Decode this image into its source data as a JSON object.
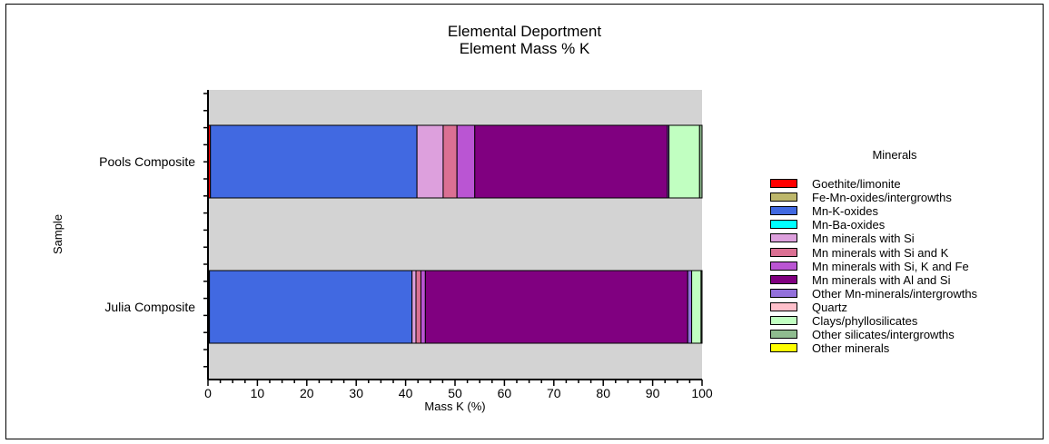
{
  "chart_data": {
    "type": "bar",
    "orientation": "horizontal",
    "stacked": true,
    "title": "Elemental Deportment",
    "subtitle": "Element Mass % K",
    "xlabel": "Mass K (%)",
    "ylabel": "Sample",
    "xlim": [
      0,
      100
    ],
    "xticks": [
      "0",
      "10",
      "20",
      "30",
      "40",
      "50",
      "60",
      "70",
      "80",
      "90",
      "100"
    ],
    "categories": [
      "Pools Composite",
      "Julia Composite"
    ],
    "legend_title": "Minerals",
    "legend_position": "right",
    "series": [
      {
        "name": "Goethite/limonite",
        "color": "#ff0000",
        "values": [
          0.5,
          0.2
        ]
      },
      {
        "name": "Fe-Mn-oxides/intergrowths",
        "color": "#bdb76b",
        "values": [
          0.0,
          0.1
        ]
      },
      {
        "name": "Mn-K-oxides",
        "color": "#4169e1",
        "values": [
          41.8,
          41.0
        ]
      },
      {
        "name": "Mn-Ba-oxides",
        "color": "#00ffff",
        "values": [
          0.0,
          0.0
        ]
      },
      {
        "name": "Mn minerals with Si",
        "color": "#dda0dd",
        "values": [
          5.3,
          0.8
        ]
      },
      {
        "name": "Mn minerals with Si and K",
        "color": "#db7093",
        "values": [
          2.8,
          1.0
        ]
      },
      {
        "name": "Mn minerals with Si, K and Fe",
        "color": "#ba55d3",
        "values": [
          3.6,
          0.9
        ]
      },
      {
        "name": "Mn minerals with Al and Si",
        "color": "#800080",
        "values": [
          39.0,
          53.1
        ]
      },
      {
        "name": "Other Mn-minerals/intergrowths",
        "color": "#9370db",
        "values": [
          0.3,
          0.8
        ]
      },
      {
        "name": "Quartz",
        "color": "#ffc0cb",
        "values": [
          0.0,
          0.0
        ]
      },
      {
        "name": "Clays/phyllosilicates",
        "color": "#c1ffc1",
        "values": [
          6.2,
          1.9
        ]
      },
      {
        "name": "Other silicates/intergrowths",
        "color": "#8fbc8f",
        "values": [
          0.5,
          0.2
        ]
      },
      {
        "name": "Other minerals",
        "color": "#ffff00",
        "values": [
          0.0,
          0.0
        ]
      }
    ]
  }
}
